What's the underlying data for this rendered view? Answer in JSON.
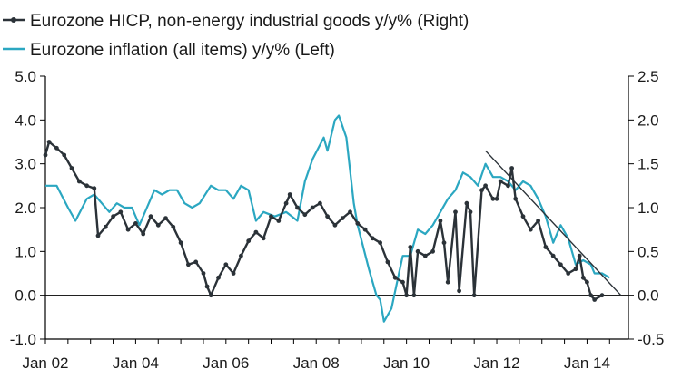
{
  "chart_data": {
    "type": "line",
    "title": "",
    "legend_position": "top-left",
    "grid": false,
    "x_axis": {
      "type": "date",
      "range": [
        "2002-01",
        "2014-12"
      ],
      "tick_labels": [
        "Jan 02",
        "Jan 04",
        "Jan 06",
        "Jan 08",
        "Jan 10",
        "Jan 12",
        "Jan 14"
      ],
      "tick_dates": [
        "2002-01",
        "2004-01",
        "2006-01",
        "2008-01",
        "2010-01",
        "2012-01",
        "2014-01"
      ]
    },
    "y_left": {
      "range": [
        -1.0,
        5.0
      ],
      "ticks": [
        5.0,
        4.0,
        3.0,
        2.0,
        1.0,
        0.0,
        -1.0
      ],
      "tick_labels": [
        "5.0",
        "4.0",
        "3.0",
        "2.0",
        "1.0",
        "0.0",
        "-1.0"
      ]
    },
    "y_right": {
      "range": [
        -0.5,
        2.5
      ],
      "ticks": [
        2.5,
        2.0,
        1.5,
        1.0,
        0.5,
        0.0,
        -0.5
      ],
      "tick_labels": [
        "2.5",
        "2.0",
        "1.5",
        "1.0",
        "0.5",
        "0.0",
        "-0.5"
      ]
    },
    "series": [
      {
        "name": "Eurozone HICP, non-energy industrial goods y/y% (Right)",
        "axis": "right",
        "color": "#2b3238",
        "marker": "dot",
        "points": [
          [
            "2002-01",
            1.6
          ],
          [
            "2002-02",
            1.75
          ],
          [
            "2002-04",
            1.68
          ],
          [
            "2002-06",
            1.6
          ],
          [
            "2002-08",
            1.45
          ],
          [
            "2002-10",
            1.3
          ],
          [
            "2002-12",
            1.25
          ],
          [
            "2003-02",
            1.22
          ],
          [
            "2003-03",
            0.68
          ],
          [
            "2003-05",
            0.78
          ],
          [
            "2003-07",
            0.9
          ],
          [
            "2003-09",
            0.95
          ],
          [
            "2003-11",
            0.75
          ],
          [
            "2004-01",
            0.82
          ],
          [
            "2004-03",
            0.7
          ],
          [
            "2004-05",
            0.9
          ],
          [
            "2004-07",
            0.8
          ],
          [
            "2004-09",
            0.88
          ],
          [
            "2004-11",
            0.78
          ],
          [
            "2005-01",
            0.6
          ],
          [
            "2005-03",
            0.35
          ],
          [
            "2005-05",
            0.38
          ],
          [
            "2005-07",
            0.25
          ],
          [
            "2005-08",
            0.1
          ],
          [
            "2005-09",
            0.0
          ],
          [
            "2005-11",
            0.2
          ],
          [
            "2006-01",
            0.35
          ],
          [
            "2006-03",
            0.25
          ],
          [
            "2006-05",
            0.45
          ],
          [
            "2006-07",
            0.62
          ],
          [
            "2006-09",
            0.72
          ],
          [
            "2006-11",
            0.65
          ],
          [
            "2007-01",
            0.9
          ],
          [
            "2007-03",
            0.85
          ],
          [
            "2007-05",
            1.05
          ],
          [
            "2007-06",
            1.15
          ],
          [
            "2007-08",
            1.0
          ],
          [
            "2007-10",
            0.92
          ],
          [
            "2007-12",
            1.0
          ],
          [
            "2008-02",
            1.05
          ],
          [
            "2008-04",
            0.9
          ],
          [
            "2008-06",
            0.8
          ],
          [
            "2008-08",
            0.88
          ],
          [
            "2008-10",
            0.95
          ],
          [
            "2008-12",
            0.82
          ],
          [
            "2009-02",
            0.75
          ],
          [
            "2009-04",
            0.65
          ],
          [
            "2009-06",
            0.6
          ],
          [
            "2009-08",
            0.38
          ],
          [
            "2009-10",
            0.2
          ],
          [
            "2009-12",
            0.15
          ],
          [
            "2010-01",
            0.0
          ],
          [
            "2010-02",
            0.55
          ],
          [
            "2010-03",
            0.0
          ],
          [
            "2010-04",
            0.5
          ],
          [
            "2010-06",
            0.45
          ],
          [
            "2010-08",
            0.5
          ],
          [
            "2010-10",
            0.85
          ],
          [
            "2010-11",
            0.6
          ],
          [
            "2010-12",
            0.15
          ],
          [
            "2011-02",
            0.95
          ],
          [
            "2011-03",
            0.05
          ],
          [
            "2011-05",
            1.05
          ],
          [
            "2011-06",
            0.95
          ],
          [
            "2011-07",
            0.0
          ],
          [
            "2011-09",
            1.2
          ],
          [
            "2011-10",
            1.25
          ],
          [
            "2011-12",
            1.1
          ],
          [
            "2012-01",
            1.1
          ],
          [
            "2012-02",
            1.3
          ],
          [
            "2012-04",
            1.25
          ],
          [
            "2012-05",
            1.45
          ],
          [
            "2012-06",
            1.1
          ],
          [
            "2012-08",
            0.9
          ],
          [
            "2012-10",
            0.75
          ],
          [
            "2012-12",
            0.85
          ],
          [
            "2013-02",
            0.55
          ],
          [
            "2013-04",
            0.45
          ],
          [
            "2013-06",
            0.35
          ],
          [
            "2013-08",
            0.25
          ],
          [
            "2013-10",
            0.3
          ],
          [
            "2013-11",
            0.45
          ],
          [
            "2013-12",
            0.2
          ],
          [
            "2014-01",
            0.15
          ],
          [
            "2014-02",
            0.0
          ],
          [
            "2014-03",
            -0.05
          ],
          [
            "2014-05",
            0.0
          ]
        ]
      },
      {
        "name": "Eurozone inflation (all items) y/y% (Left)",
        "axis": "left",
        "color": "#2ba7c1",
        "marker": "none",
        "points": [
          [
            "2002-01",
            2.5
          ],
          [
            "2002-04",
            2.5
          ],
          [
            "2002-07",
            2.0
          ],
          [
            "2002-09",
            1.7
          ],
          [
            "2002-12",
            2.2
          ],
          [
            "2003-02",
            2.3
          ],
          [
            "2003-04",
            2.1
          ],
          [
            "2003-06",
            1.9
          ],
          [
            "2003-08",
            2.1
          ],
          [
            "2003-10",
            2.0
          ],
          [
            "2003-12",
            2.0
          ],
          [
            "2004-02",
            1.6
          ],
          [
            "2004-04",
            2.0
          ],
          [
            "2004-06",
            2.4
          ],
          [
            "2004-08",
            2.3
          ],
          [
            "2004-10",
            2.4
          ],
          [
            "2004-12",
            2.4
          ],
          [
            "2005-02",
            2.1
          ],
          [
            "2005-04",
            2.0
          ],
          [
            "2005-06",
            2.1
          ],
          [
            "2005-09",
            2.5
          ],
          [
            "2005-11",
            2.4
          ],
          [
            "2006-01",
            2.4
          ],
          [
            "2006-03",
            2.2
          ],
          [
            "2006-05",
            2.5
          ],
          [
            "2006-07",
            2.4
          ],
          [
            "2006-09",
            1.7
          ],
          [
            "2006-11",
            1.9
          ],
          [
            "2007-02",
            1.8
          ],
          [
            "2007-05",
            1.9
          ],
          [
            "2007-08",
            1.7
          ],
          [
            "2007-10",
            2.6
          ],
          [
            "2007-12",
            3.1
          ],
          [
            "2008-03",
            3.6
          ],
          [
            "2008-04",
            3.3
          ],
          [
            "2008-06",
            4.0
          ],
          [
            "2008-07",
            4.1
          ],
          [
            "2008-09",
            3.6
          ],
          [
            "2008-11",
            2.1
          ],
          [
            "2008-12",
            1.6
          ],
          [
            "2009-03",
            0.6
          ],
          [
            "2009-05",
            0.0
          ],
          [
            "2009-06",
            -0.1
          ],
          [
            "2009-07",
            -0.6
          ],
          [
            "2009-09",
            -0.3
          ],
          [
            "2009-11",
            0.5
          ],
          [
            "2009-12",
            0.9
          ],
          [
            "2010-02",
            0.9
          ],
          [
            "2010-04",
            1.5
          ],
          [
            "2010-06",
            1.4
          ],
          [
            "2010-08",
            1.6
          ],
          [
            "2010-10",
            1.9
          ],
          [
            "2010-12",
            2.2
          ],
          [
            "2011-02",
            2.4
          ],
          [
            "2011-04",
            2.8
          ],
          [
            "2011-06",
            2.7
          ],
          [
            "2011-08",
            2.5
          ],
          [
            "2011-10",
            3.0
          ],
          [
            "2011-12",
            2.7
          ],
          [
            "2012-02",
            2.7
          ],
          [
            "2012-04",
            2.6
          ],
          [
            "2012-06",
            2.4
          ],
          [
            "2012-08",
            2.6
          ],
          [
            "2012-10",
            2.5
          ],
          [
            "2012-12",
            2.2
          ],
          [
            "2013-02",
            1.8
          ],
          [
            "2013-04",
            1.2
          ],
          [
            "2013-06",
            1.6
          ],
          [
            "2013-08",
            1.3
          ],
          [
            "2013-10",
            0.7
          ],
          [
            "2013-12",
            0.8
          ],
          [
            "2014-02",
            0.7
          ],
          [
            "2014-03",
            0.5
          ],
          [
            "2014-05",
            0.5
          ],
          [
            "2014-07",
            0.4
          ]
        ]
      }
    ],
    "annotations": [
      {
        "type": "trend-line",
        "axis": "right",
        "color": "#2b3238",
        "from": [
          "2011-10",
          1.65
        ],
        "to": [
          "2014-10",
          0.0
        ]
      }
    ],
    "reference_lines": [
      {
        "axis": "left",
        "y": 0.0,
        "color": "#000000"
      }
    ]
  }
}
